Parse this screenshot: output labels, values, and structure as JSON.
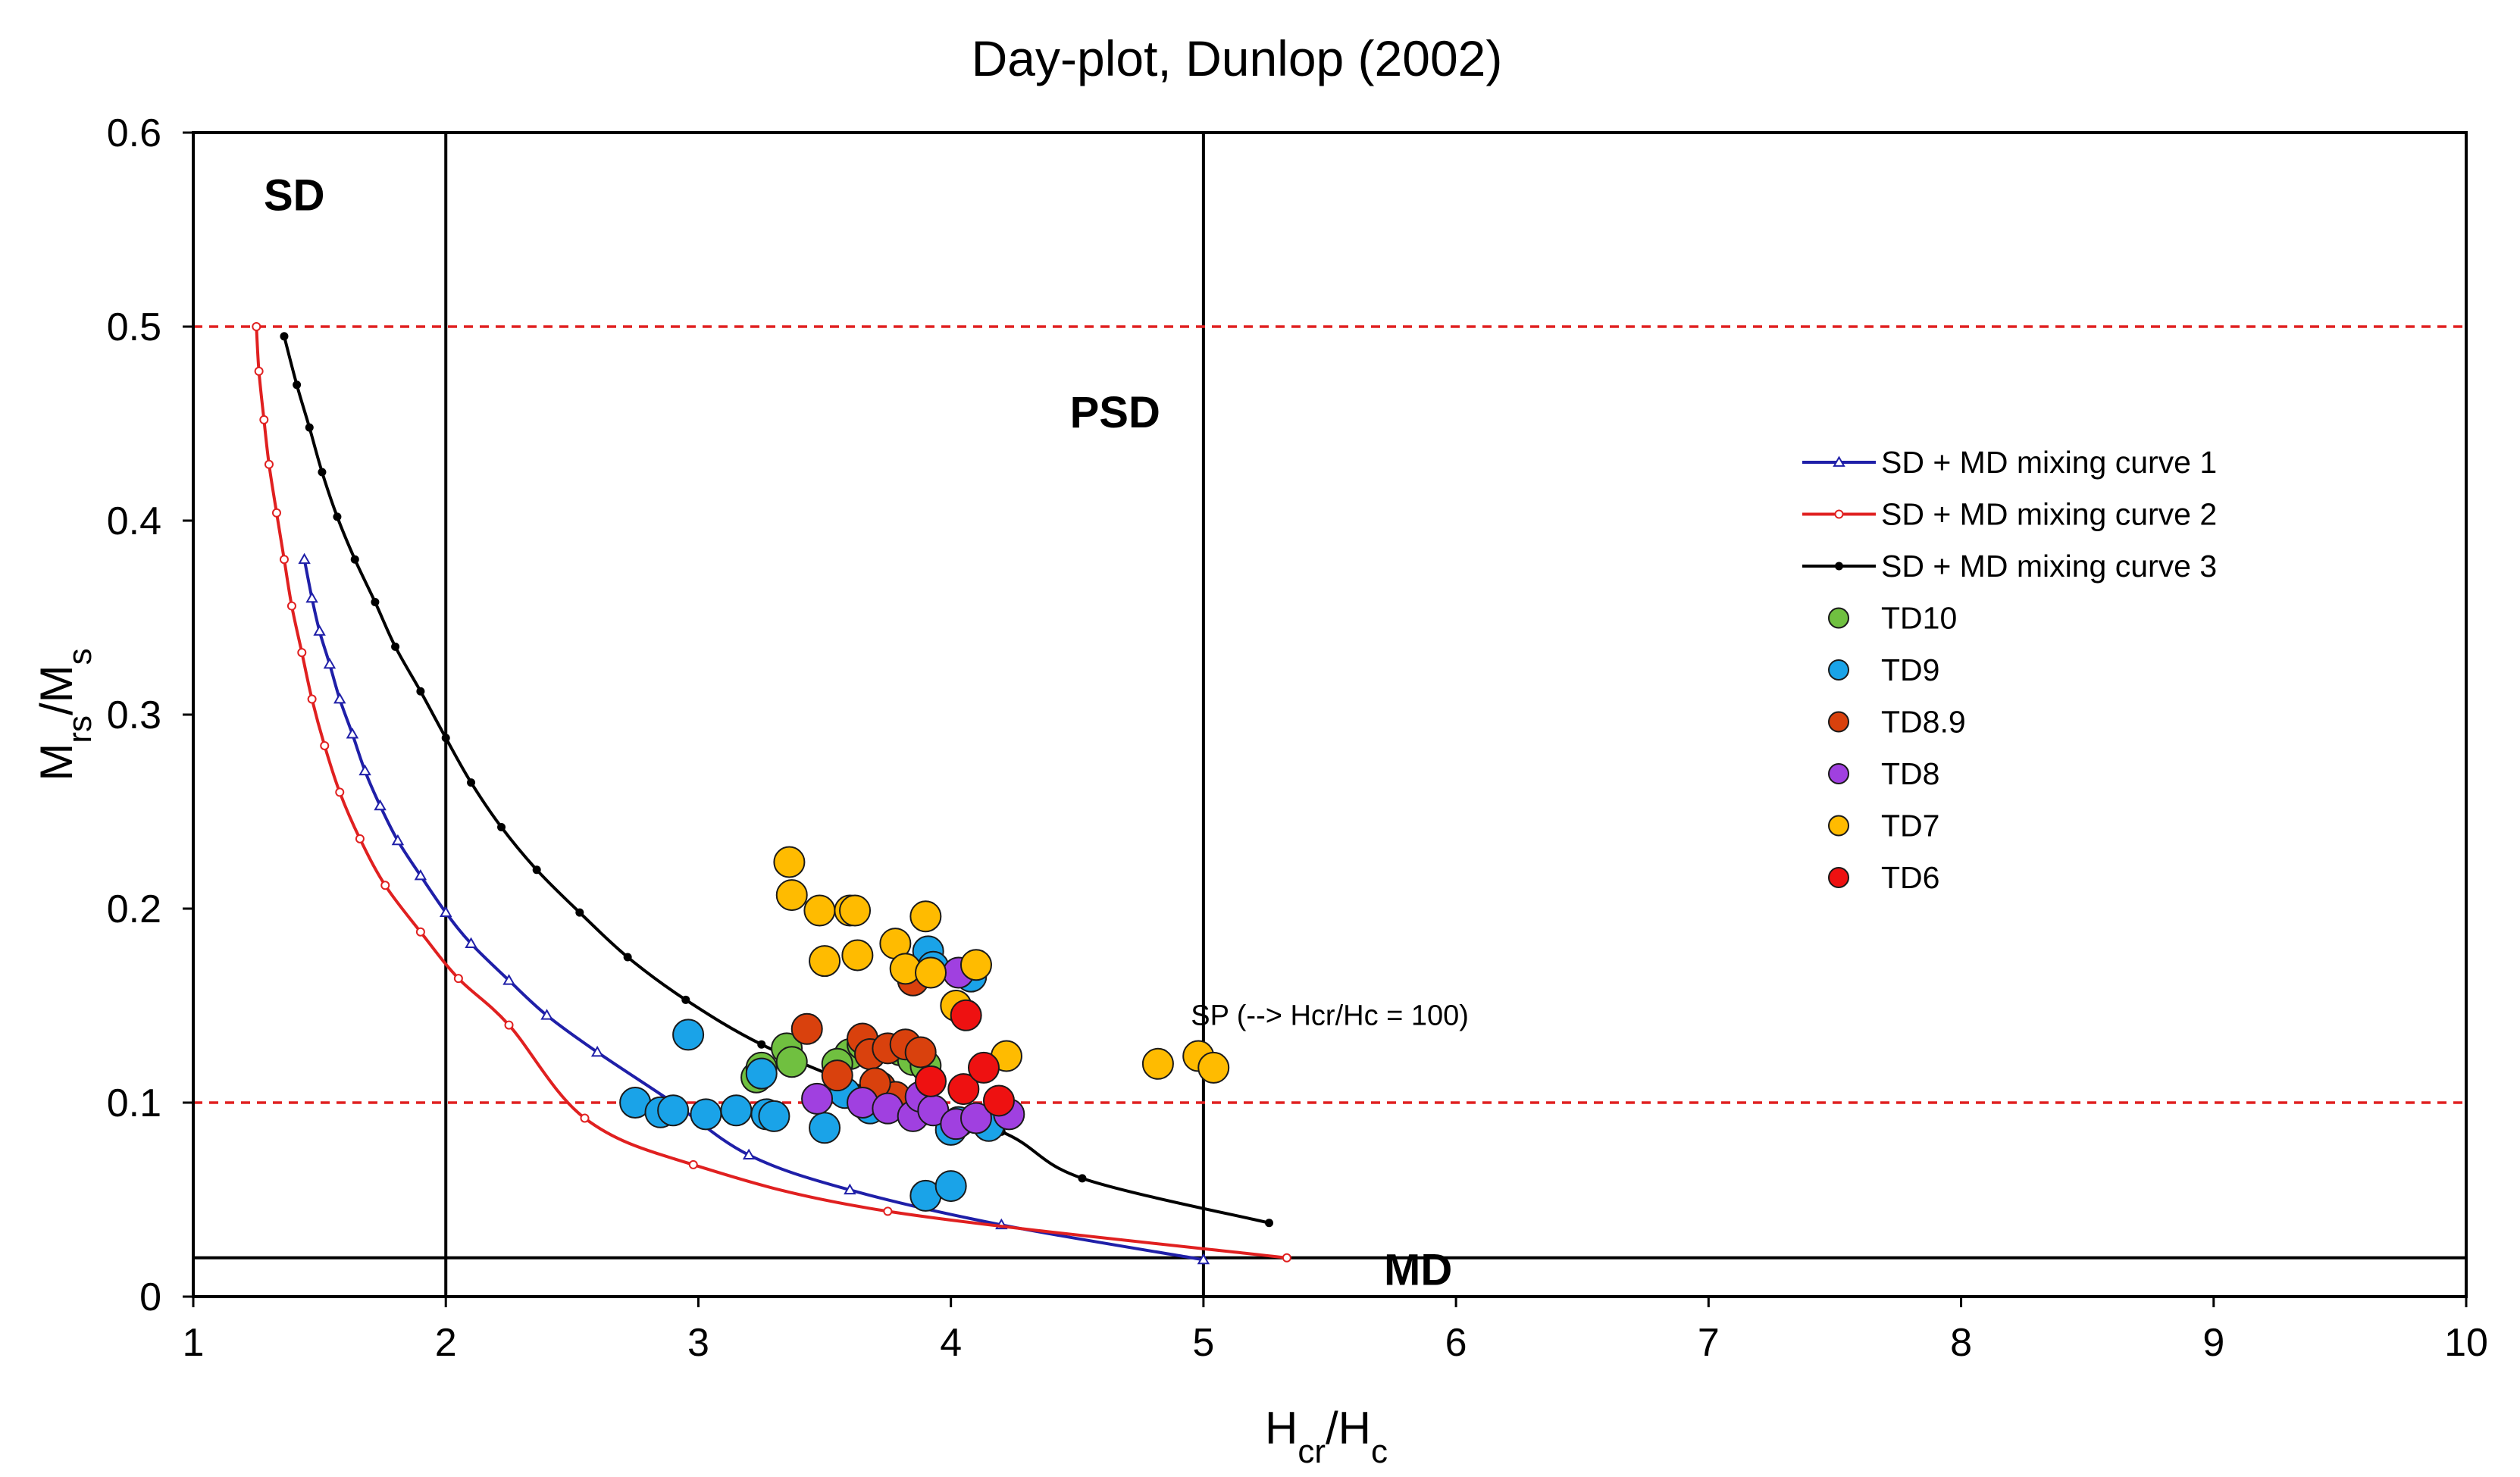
{
  "chart_data": {
    "type": "scatter",
    "title": "Day-plot, Dunlop (2002)",
    "xlabel": {
      "main": "H",
      "sub1": "cr",
      "mid": "/H",
      "sub2": "c"
    },
    "ylabel": {
      "main": "M",
      "sub1": "rs",
      "mid": "/M",
      "sub2": "s"
    },
    "xlim": [
      1,
      10
    ],
    "ylim": [
      0,
      0.6
    ],
    "xticks": [
      1,
      2,
      3,
      4,
      5,
      6,
      7,
      8,
      9,
      10
    ],
    "yticks": [
      0,
      0.1,
      0.2,
      0.3,
      0.4,
      0.5,
      0.6
    ],
    "ytick_labels": [
      "0",
      "0.1",
      "0.2",
      "0.3",
      "0.4",
      "0.5",
      "0.6"
    ],
    "grid": false,
    "legend_position": "right",
    "region_labels": [
      {
        "text": "SD",
        "x": 1.4,
        "y": 0.56
      },
      {
        "text": "PSD",
        "x": 4.65,
        "y": 0.448
      },
      {
        "text": "MD",
        "x": 5.85,
        "y": 0.006
      }
    ],
    "annotation": {
      "text": "SP (--> Hcr/Hc = 100)",
      "x": 4.95,
      "y": 0.14
    },
    "reference_lines": [
      {
        "orientation": "vertical",
        "value": 2,
        "style": "solid",
        "color": "#000000"
      },
      {
        "orientation": "vertical",
        "value": 5,
        "style": "solid",
        "color": "#000000"
      },
      {
        "orientation": "horizontal",
        "value": 0.5,
        "style": "dashed",
        "color": "#e02020"
      },
      {
        "orientation": "horizontal",
        "value": 0.1,
        "style": "dashed",
        "color": "#e02020"
      },
      {
        "orientation": "horizontal",
        "value": 0.02,
        "style": "solid",
        "color": "#000000"
      }
    ],
    "curves": [
      {
        "name": "SD + MD mixing curve 1",
        "color": "#1f1fa8",
        "marker": "triangle",
        "x": [
          1.44,
          1.47,
          1.5,
          1.54,
          1.58,
          1.63,
          1.68,
          1.74,
          1.81,
          1.9,
          2.0,
          2.1,
          2.25,
          2.4,
          2.6,
          2.9,
          3.2,
          3.6,
          4.2,
          5.0
        ],
        "y": [
          0.38,
          0.36,
          0.343,
          0.326,
          0.308,
          0.29,
          0.271,
          0.253,
          0.235,
          0.217,
          0.198,
          0.182,
          0.163,
          0.145,
          0.126,
          0.1,
          0.073,
          0.055,
          0.037,
          0.019
        ]
      },
      {
        "name": "SD + MD mixing curve 2",
        "color": "#e02020",
        "marker": "circle-open",
        "x": [
          1.25,
          1.26,
          1.28,
          1.3,
          1.33,
          1.36,
          1.39,
          1.43,
          1.47,
          1.52,
          1.58,
          1.66,
          1.76,
          1.9,
          2.05,
          2.25,
          2.55,
          2.98,
          3.75,
          5.33
        ],
        "y": [
          0.5,
          0.477,
          0.452,
          0.429,
          0.404,
          0.38,
          0.356,
          0.332,
          0.308,
          0.284,
          0.26,
          0.236,
          0.212,
          0.188,
          0.164,
          0.14,
          0.092,
          0.068,
          0.044,
          0.02
        ]
      },
      {
        "name": "SD + MD mixing curve 3",
        "color": "#000000",
        "marker": "dot",
        "x": [
          1.36,
          1.41,
          1.46,
          1.51,
          1.57,
          1.64,
          1.72,
          1.8,
          1.9,
          2.0,
          2.1,
          2.22,
          2.36,
          2.53,
          2.72,
          2.95,
          3.25,
          3.65,
          4.2,
          4.52,
          5.26
        ],
        "y": [
          0.495,
          0.47,
          0.448,
          0.425,
          0.402,
          0.38,
          0.358,
          0.335,
          0.312,
          0.288,
          0.265,
          0.242,
          0.22,
          0.198,
          0.175,
          0.153,
          0.13,
          0.108,
          0.085,
          0.061,
          0.038
        ]
      }
    ],
    "series": [
      {
        "name": "TD10",
        "color": "#70c040",
        "x": [
          3.23,
          3.25,
          3.35,
          3.37,
          3.6,
          3.65,
          3.8,
          3.85,
          3.9,
          3.55
        ],
        "y": [
          0.113,
          0.118,
          0.128,
          0.121,
          0.125,
          0.13,
          0.127,
          0.122,
          0.119,
          0.12
        ]
      },
      {
        "name": "TD9",
        "color": "#1aa3e8",
        "x": [
          2.75,
          2.85,
          2.9,
          2.96,
          3.03,
          3.15,
          3.25,
          3.27,
          3.3,
          3.5,
          3.58,
          3.68,
          3.77,
          3.88,
          3.91,
          3.93,
          4.0,
          4.03,
          4.08,
          4.15,
          3.9,
          4.0
        ],
        "y": [
          0.1,
          0.095,
          0.096,
          0.135,
          0.094,
          0.096,
          0.115,
          0.094,
          0.093,
          0.087,
          0.105,
          0.097,
          0.1,
          0.096,
          0.178,
          0.17,
          0.086,
          0.09,
          0.165,
          0.088,
          0.052,
          0.057
        ]
      },
      {
        "name": "TD8.9",
        "color": "#d9410d",
        "x": [
          3.43,
          3.55,
          3.65,
          3.68,
          3.72,
          3.75,
          3.78,
          3.82,
          3.85,
          3.88,
          3.7
        ],
        "y": [
          0.138,
          0.114,
          0.133,
          0.125,
          0.108,
          0.128,
          0.103,
          0.13,
          0.163,
          0.126,
          0.11
        ]
      },
      {
        "name": "TD8",
        "color": "#a040e0",
        "x": [
          3.47,
          3.65,
          3.75,
          3.85,
          3.88,
          3.93,
          4.02,
          4.1,
          4.23,
          4.03
        ],
        "y": [
          0.102,
          0.1,
          0.097,
          0.093,
          0.103,
          0.096,
          0.089,
          0.092,
          0.094,
          0.167
        ]
      },
      {
        "name": "TD7",
        "color": "#ffbb00",
        "x": [
          3.36,
          3.37,
          3.48,
          3.6,
          3.62,
          3.5,
          3.63,
          3.78,
          3.82,
          3.9,
          3.92,
          4.02,
          4.1,
          4.22,
          4.82,
          4.98,
          5.04
        ],
        "y": [
          0.224,
          0.207,
          0.199,
          0.199,
          0.199,
          0.173,
          0.176,
          0.182,
          0.169,
          0.196,
          0.167,
          0.15,
          0.171,
          0.124,
          0.12,
          0.124,
          0.118
        ]
      },
      {
        "name": "TD6",
        "color": "#ee1111",
        "x": [
          4.06,
          3.92,
          4.05,
          4.13,
          4.19
        ],
        "y": [
          0.145,
          0.111,
          0.107,
          0.118,
          0.101
        ]
      }
    ]
  }
}
